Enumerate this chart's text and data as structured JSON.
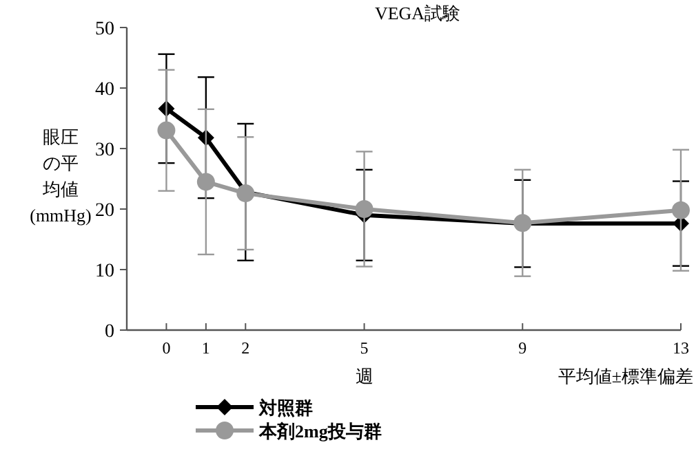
{
  "chart_data": {
    "type": "line",
    "title": "VEGA試験",
    "xlabel": "週",
    "ylabel": "眼圧の平均値(mmHg)",
    "annotations": [
      "平均値±標準偏差"
    ],
    "x": [
      0,
      1,
      2,
      5,
      9,
      13
    ],
    "series": [
      {
        "name": "対照群",
        "color": "#000000",
        "marker": "diamond",
        "values": [
          36.6,
          31.8,
          22.8,
          19,
          17.6,
          17.6
        ],
        "errors": [
          9,
          10,
          11.3,
          7.5,
          7.2,
          7
        ]
      },
      {
        "name": "本剤2mg投与群",
        "color": "#999999",
        "marker": "circle",
        "values": [
          33,
          24.5,
          22.6,
          20,
          17.7,
          19.8
        ],
        "errors": [
          10,
          12,
          9.3,
          9.5,
          8.8,
          10
        ]
      }
    ],
    "xlim": [
      -1,
      13
    ],
    "xticks": [
      0,
      1,
      2,
      5,
      9,
      13
    ],
    "ylim": [
      0,
      50
    ],
    "yticks": [
      0,
      10,
      20,
      30,
      40,
      50
    ],
    "grid": false,
    "legend": "bottom",
    "line_style": "solid"
  }
}
